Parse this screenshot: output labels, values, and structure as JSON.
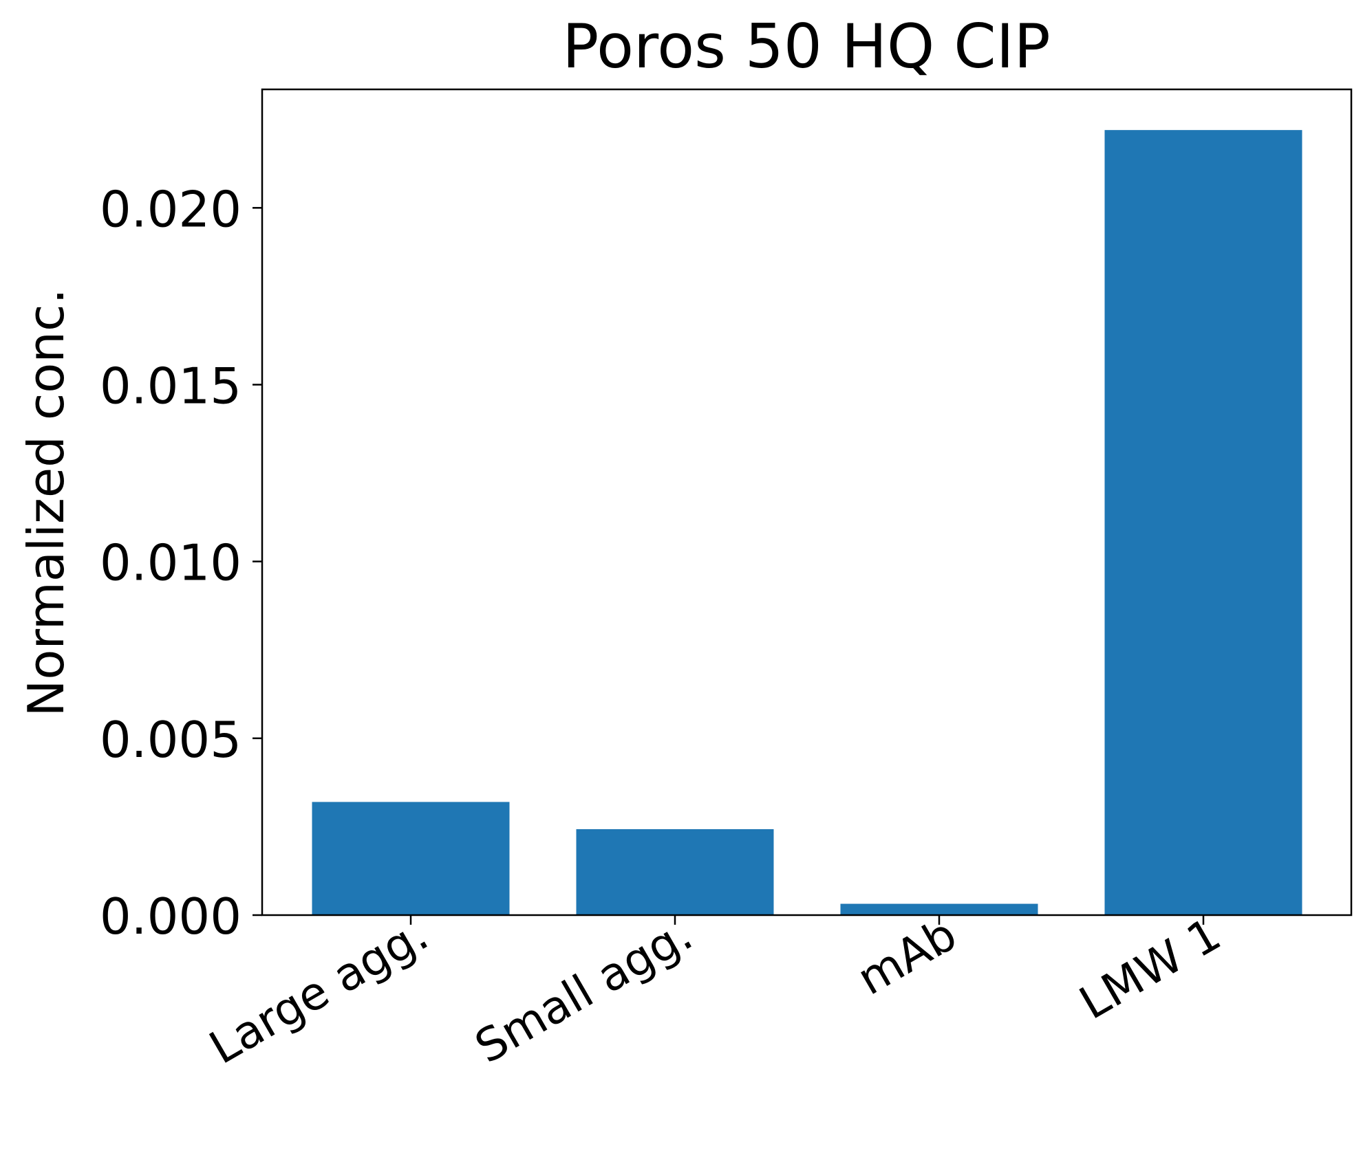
{
  "chart_data": {
    "type": "bar",
    "title": "Poros 50 HQ CIP",
    "xlabel": "",
    "ylabel": "Normalized conc.",
    "categories": [
      "Large agg.",
      "Small agg.",
      "mAb",
      "LMW 1"
    ],
    "values": [
      0.0032,
      0.00243,
      0.00032,
      0.0222
    ],
    "ylim": [
      0,
      0.02335
    ],
    "yticks": [
      0,
      0.005,
      0.01,
      0.015,
      0.02
    ],
    "ytick_labels": [
      "0.000",
      "0.005",
      "0.010",
      "0.015",
      "0.020"
    ],
    "bar_color": "#1f77b4",
    "grid": false,
    "legend": "none"
  }
}
